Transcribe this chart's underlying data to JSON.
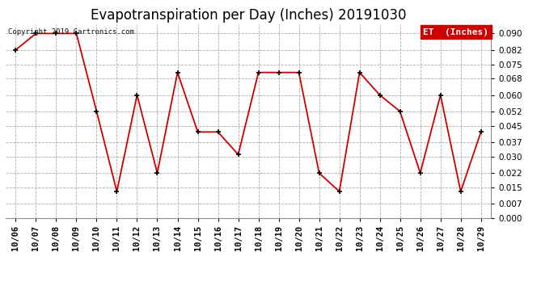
{
  "title": "Evapotranspiration per Day (Inches) 20191030",
  "copyright_text": "Copyright 2019 Cartronics.com",
  "legend_label": "ET  (Inches)",
  "x_labels": [
    "10/06",
    "10/07",
    "10/08",
    "10/09",
    "10/10",
    "10/11",
    "10/12",
    "10/13",
    "10/14",
    "10/15",
    "10/16",
    "10/17",
    "10/18",
    "10/19",
    "10/20",
    "10/21",
    "10/22",
    "10/23",
    "10/24",
    "10/25",
    "10/26",
    "10/27",
    "10/28",
    "10/29"
  ],
  "y_values": [
    0.082,
    0.09,
    0.09,
    0.09,
    0.052,
    0.013,
    0.06,
    0.022,
    0.071,
    0.042,
    0.042,
    0.031,
    0.071,
    0.071,
    0.071,
    0.022,
    0.013,
    0.071,
    0.06,
    0.052,
    0.022,
    0.06,
    0.013,
    0.042
  ],
  "line_color": "#cc0000",
  "marker_color": "#000000",
  "bg_color": "#ffffff",
  "grid_color": "#aaaaaa",
  "legend_bg": "#cc0000",
  "legend_text_color": "#ffffff",
  "ylim": [
    0.0,
    0.0945
  ],
  "yticks": [
    0.0,
    0.007,
    0.015,
    0.022,
    0.03,
    0.037,
    0.045,
    0.052,
    0.06,
    0.068,
    0.075,
    0.082,
    0.09
  ],
  "title_fontsize": 12,
  "axis_fontsize": 7.5,
  "copyright_fontsize": 6.5,
  "legend_fontsize": 8
}
